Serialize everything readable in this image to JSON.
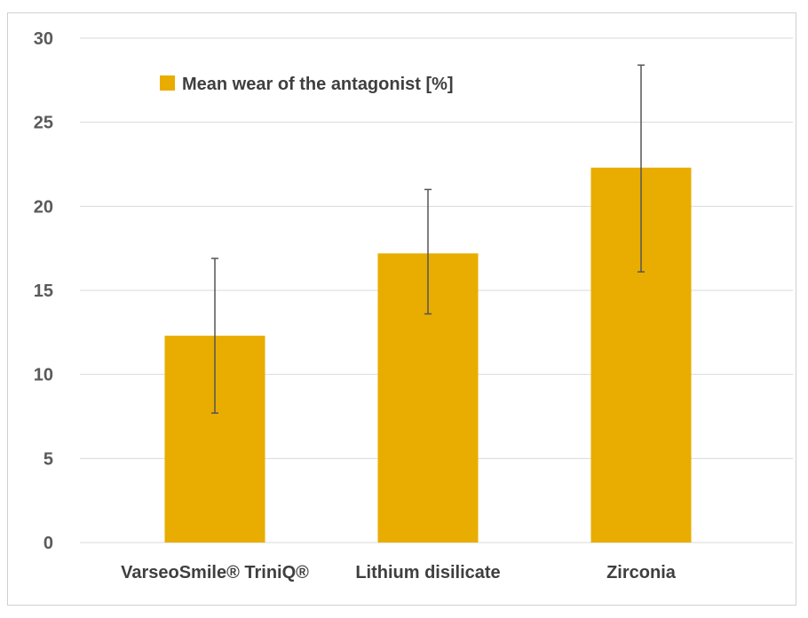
{
  "chart_data": {
    "type": "bar",
    "categories": [
      "VarseoSmile® TriniQ®",
      "Lithium disilicate",
      "Zirconia"
    ],
    "series": [
      {
        "name": "Mean wear of the antagonist [%]",
        "values": [
          12.3,
          17.2,
          22.3
        ],
        "error_low": [
          7.7,
          13.6,
          16.1
        ],
        "error_high": [
          16.9,
          21.0,
          28.4
        ],
        "color": "#E8AD00"
      }
    ],
    "y_ticks": [
      "0",
      "5",
      "10",
      "15",
      "20",
      "25",
      "30"
    ],
    "ylim": [
      0,
      30
    ],
    "grid": true,
    "legend_position": "top-left"
  }
}
